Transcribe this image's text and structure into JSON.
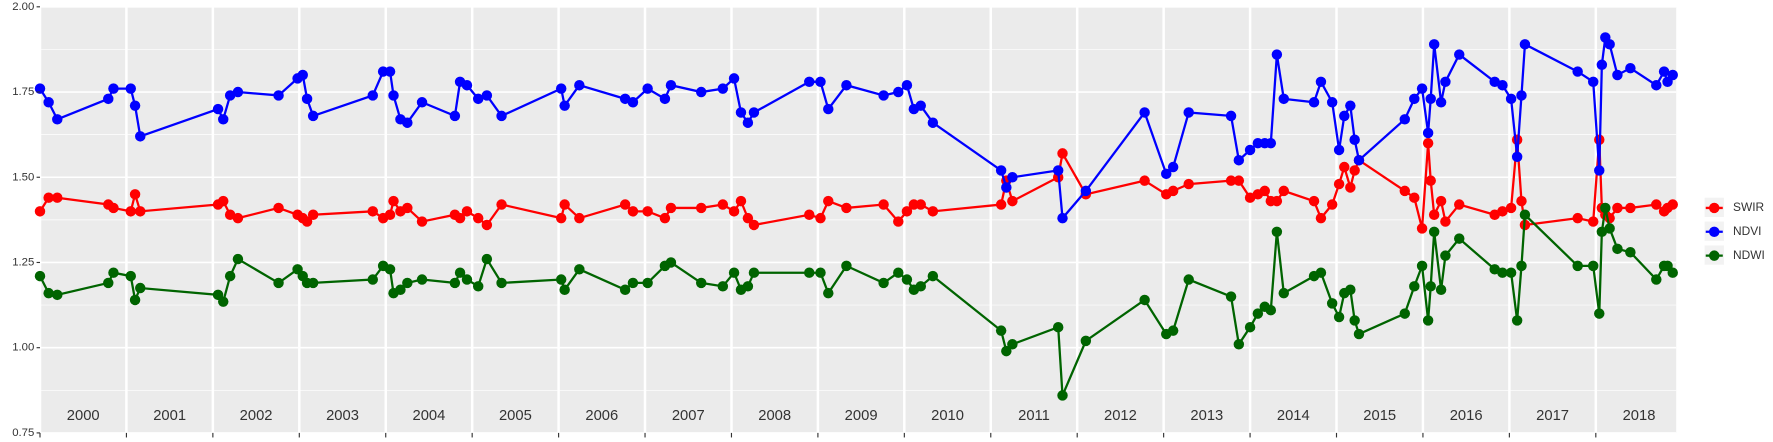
{
  "chart_data": {
    "type": "line",
    "x": [
      2000.0,
      2000.1,
      2000.2,
      2000.79,
      2000.85,
      2001.05,
      2001.1,
      2001.16,
      2002.06,
      2002.12,
      2002.2,
      2002.29,
      2002.76,
      2002.98,
      2003.04,
      2003.09,
      2003.16,
      2003.85,
      2003.97,
      2004.05,
      2004.09,
      2004.17,
      2004.25,
      2004.42,
      2004.8,
      2004.86,
      2004.94,
      2005.07,
      2005.17,
      2005.34,
      2006.03,
      2006.07,
      2006.24,
      2006.77,
      2006.86,
      2007.03,
      2007.23,
      2007.3,
      2007.65,
      2007.9,
      2008.03,
      2008.11,
      2008.19,
      2008.26,
      2008.9,
      2009.03,
      2009.12,
      2009.33,
      2009.76,
      2009.93,
      2010.03,
      2010.11,
      2010.19,
      2010.33,
      2011.12,
      2011.18,
      2011.25,
      2011.78,
      2011.83,
      2012.1,
      2012.78,
      2013.03,
      2013.11,
      2013.29,
      2013.78,
      2013.87,
      2014.0,
      2014.09,
      2014.17,
      2014.24,
      2014.31,
      2014.39,
      2014.74,
      2014.82,
      2014.95,
      2015.03,
      2015.09,
      2015.16,
      2015.21,
      2015.26,
      2015.79,
      2015.9,
      2015.99,
      2016.06,
      2016.09,
      2016.13,
      2016.21,
      2016.26,
      2016.42,
      2016.83,
      2016.92,
      2017.02,
      2017.09,
      2017.14,
      2017.18,
      2017.79,
      2017.97,
      2018.04,
      2018.07,
      2018.11,
      2018.16,
      2018.25,
      2018.4,
      2018.7,
      2018.79,
      2018.83,
      2018.89
    ],
    "series": [
      {
        "name": "SWIR",
        "color": "#ff0000",
        "values": [
          1.4,
          1.44,
          1.44,
          1.42,
          1.41,
          1.4,
          1.45,
          1.4,
          1.42,
          1.43,
          1.39,
          1.38,
          1.41,
          1.39,
          1.38,
          1.37,
          1.39,
          1.4,
          1.38,
          1.39,
          1.43,
          1.4,
          1.41,
          1.37,
          1.39,
          1.38,
          1.4,
          1.38,
          1.36,
          1.42,
          1.38,
          1.42,
          1.38,
          1.42,
          1.4,
          1.4,
          1.38,
          1.41,
          1.41,
          1.42,
          1.4,
          1.43,
          1.38,
          1.36,
          1.39,
          1.38,
          1.43,
          1.41,
          1.42,
          1.37,
          1.4,
          1.42,
          1.42,
          1.4,
          1.42,
          1.49,
          1.43,
          1.5,
          1.57,
          1.45,
          1.49,
          1.45,
          1.46,
          1.48,
          1.49,
          1.49,
          1.44,
          1.45,
          1.46,
          1.43,
          1.43,
          1.46,
          1.43,
          1.38,
          1.42,
          1.48,
          1.53,
          1.47,
          1.52,
          1.55,
          1.46,
          1.44,
          1.35,
          1.6,
          1.49,
          1.39,
          1.43,
          1.37,
          1.42,
          1.39,
          1.4,
          1.41,
          1.61,
          1.43,
          1.36,
          1.38,
          1.37,
          1.61,
          1.41,
          1.39,
          1.38,
          1.41,
          1.41,
          1.42,
          1.4,
          1.41,
          1.42
        ]
      },
      {
        "name": "NDVI",
        "color": "#0000ff",
        "values": [
          1.76,
          1.72,
          1.67,
          1.73,
          1.76,
          1.76,
          1.71,
          1.62,
          1.7,
          1.67,
          1.74,
          1.75,
          1.74,
          1.79,
          1.8,
          1.73,
          1.68,
          1.74,
          1.81,
          1.81,
          1.74,
          1.67,
          1.66,
          1.72,
          1.68,
          1.78,
          1.77,
          1.73,
          1.74,
          1.68,
          1.76,
          1.71,
          1.77,
          1.73,
          1.72,
          1.76,
          1.73,
          1.77,
          1.75,
          1.76,
          1.79,
          1.69,
          1.66,
          1.69,
          1.78,
          1.78,
          1.7,
          1.77,
          1.74,
          1.75,
          1.77,
          1.7,
          1.71,
          1.66,
          1.52,
          1.47,
          1.5,
          1.52,
          1.38,
          1.46,
          1.69,
          1.51,
          1.53,
          1.69,
          1.68,
          1.55,
          1.58,
          1.6,
          1.6,
          1.6,
          1.86,
          1.73,
          1.72,
          1.78,
          1.72,
          1.58,
          1.68,
          1.71,
          1.61,
          1.55,
          1.67,
          1.73,
          1.76,
          1.63,
          1.73,
          1.89,
          1.72,
          1.78,
          1.86,
          1.78,
          1.77,
          1.73,
          1.56,
          1.74,
          1.89,
          1.81,
          1.78,
          1.52,
          1.83,
          1.91,
          1.89,
          1.8,
          1.82,
          1.77,
          1.81,
          1.78,
          1.8
        ]
      },
      {
        "name": "NDWI",
        "color": "#006400",
        "values": [
          1.21,
          1.16,
          1.155,
          1.19,
          1.22,
          1.21,
          1.14,
          1.175,
          1.155,
          1.135,
          1.21,
          1.26,
          1.19,
          1.23,
          1.21,
          1.19,
          1.19,
          1.2,
          1.24,
          1.23,
          1.16,
          1.17,
          1.19,
          1.2,
          1.19,
          1.22,
          1.2,
          1.18,
          1.26,
          1.19,
          1.2,
          1.17,
          1.23,
          1.17,
          1.19,
          1.19,
          1.24,
          1.25,
          1.19,
          1.18,
          1.22,
          1.17,
          1.18,
          1.22,
          1.22,
          1.22,
          1.16,
          1.24,
          1.19,
          1.22,
          1.2,
          1.17,
          1.18,
          1.21,
          1.05,
          0.99,
          1.01,
          1.06,
          0.86,
          1.02,
          1.14,
          1.04,
          1.05,
          1.2,
          1.15,
          1.01,
          1.06,
          1.1,
          1.12,
          1.11,
          1.34,
          1.16,
          1.21,
          1.22,
          1.13,
          1.09,
          1.16,
          1.17,
          1.08,
          1.04,
          1.1,
          1.18,
          1.24,
          1.08,
          1.18,
          1.34,
          1.17,
          1.27,
          1.32,
          1.23,
          1.22,
          1.22,
          1.08,
          1.24,
          1.39,
          1.24,
          1.24,
          1.1,
          1.34,
          1.41,
          1.35,
          1.29,
          1.28,
          1.2,
          1.24,
          1.24,
          1.22
        ]
      }
    ],
    "xlim": [
      2000,
      2018.93
    ],
    "xgrid": [
      2000,
      2001,
      2002,
      2003,
      2004,
      2005,
      2006,
      2007,
      2008,
      2009,
      2010,
      2011,
      2012,
      2013,
      2014,
      2015,
      2016,
      2017,
      2018
    ],
    "year_labels": [
      {
        "value": 2000.5,
        "label": "2000"
      },
      {
        "value": 2001.5,
        "label": "2001"
      },
      {
        "value": 2002.5,
        "label": "2002"
      },
      {
        "value": 2003.5,
        "label": "2003"
      },
      {
        "value": 2004.5,
        "label": "2004"
      },
      {
        "value": 2005.5,
        "label": "2005"
      },
      {
        "value": 2006.5,
        "label": "2006"
      },
      {
        "value": 2007.5,
        "label": "2007"
      },
      {
        "value": 2008.5,
        "label": "2008"
      },
      {
        "value": 2009.5,
        "label": "2009"
      },
      {
        "value": 2010.5,
        "label": "2010"
      },
      {
        "value": 2011.5,
        "label": "2011"
      },
      {
        "value": 2012.5,
        "label": "2012"
      },
      {
        "value": 2013.5,
        "label": "2013"
      },
      {
        "value": 2014.5,
        "label": "2014"
      },
      {
        "value": 2015.5,
        "label": "2015"
      },
      {
        "value": 2016.5,
        "label": "2016"
      },
      {
        "value": 2017.5,
        "label": "2017"
      },
      {
        "value": 2018.5,
        "label": "2018"
      }
    ],
    "ylim": [
      0.75,
      2.0
    ],
    "yticks": [
      {
        "value": 0.75,
        "label": "0.75"
      },
      {
        "value": 1.0,
        "label": "1.00"
      },
      {
        "value": 1.25,
        "label": "1.25"
      },
      {
        "value": 1.5,
        "label": "1.50"
      },
      {
        "value": 1.75,
        "label": "1.75"
      },
      {
        "value": 2.0,
        "label": "2.00"
      }
    ],
    "grid": true,
    "legend": "right"
  }
}
